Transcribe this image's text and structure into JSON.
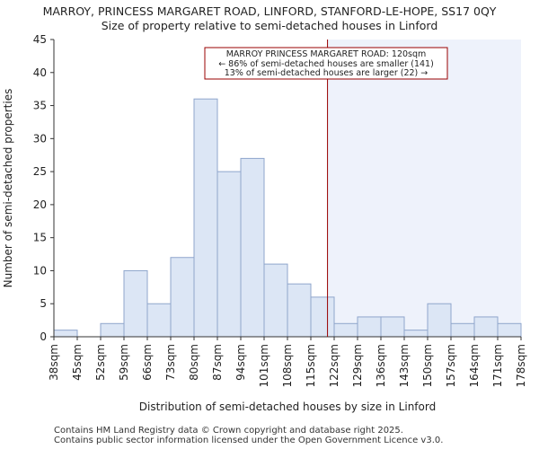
{
  "chart_data": {
    "type": "bar",
    "title": "MARROY, PRINCESS MARGARET ROAD, LINFORD, STANFORD-LE-HOPE, SS17 0QY",
    "subtitle": "Size of property relative to semi-detached houses in Linford",
    "xlabel": "Distribution of semi-detached houses by size in Linford",
    "ylabel": "Number of semi-detached properties",
    "x_tick_labels": [
      "38sqm",
      "45sqm",
      "52sqm",
      "59sqm",
      "66sqm",
      "73sqm",
      "80sqm",
      "87sqm",
      "94sqm",
      "101sqm",
      "108sqm",
      "115sqm",
      "122sqm",
      "129sqm",
      "136sqm",
      "143sqm",
      "150sqm",
      "157sqm",
      "164sqm",
      "171sqm",
      "178sqm"
    ],
    "bins_sqm": [
      38,
      45,
      52,
      59,
      66,
      73,
      80,
      87,
      94,
      101,
      108,
      115,
      122,
      129,
      136,
      143,
      150,
      157,
      164,
      171,
      178
    ],
    "values": [
      1,
      0,
      2,
      10,
      5,
      12,
      36,
      25,
      27,
      11,
      8,
      6,
      2,
      3,
      3,
      1,
      5,
      2,
      3,
      2
    ],
    "ylim": [
      0,
      45
    ],
    "y_ticks": [
      0,
      5,
      10,
      15,
      20,
      25,
      30,
      35,
      40,
      45
    ],
    "marker_sqm": 120,
    "bar_color": "#dce6f5",
    "bar_edge_color": "#8fa6cc",
    "highlight_color": "#eef2fb",
    "marker_color": "#990000",
    "annotation": {
      "line1": "MARROY PRINCESS MARGARET ROAD: 120sqm",
      "line2": "← 86% of semi-detached houses are smaller (141)",
      "line3": "13% of semi-detached houses are larger (22) →"
    }
  },
  "footer": {
    "line1": "Contains HM Land Registry data © Crown copyright and database right 2025.",
    "line2": "Contains public sector information licensed under the Open Government Licence v3.0."
  }
}
